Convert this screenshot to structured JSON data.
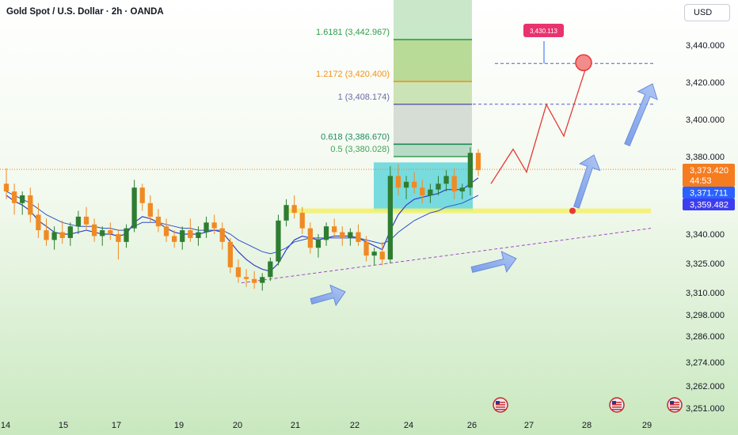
{
  "header": {
    "title": "Gold Spot / U.S. Dollar · 2h · OANDA",
    "currency": "USD"
  },
  "chart_data": {
    "type": "candlestick",
    "title": "Gold Spot / U.S. Dollar · 2h · OANDA",
    "x_ticks": [
      "14",
      "15",
      "17",
      "19",
      "20",
      "21",
      "22",
      "24",
      "26",
      "27",
      "28",
      "29"
    ],
    "y_ticks": [
      3440,
      3420,
      3400,
      3380,
      3340,
      3325,
      3310,
      3298,
      3286,
      3274,
      3262,
      3251
    ],
    "y_tick_labels": [
      "3,440.000",
      "3,420.000",
      "3,400.000",
      "3,380.000",
      "3,340.000",
      "3,325.000",
      "3,310.000",
      "3,298.000",
      "3,286.000",
      "3,274.000",
      "3,262.000",
      "3,251.000"
    ],
    "ylim": [
      3248,
      3462
    ],
    "price_tags": [
      {
        "label": "3,373.420",
        "sub": "44:53",
        "value": 3373.42,
        "color": "#f57c1f"
      },
      {
        "label": "3,371.711",
        "value": 3371.711,
        "color": "#2962ff"
      },
      {
        "label": "3,359.482",
        "value": 3359.482,
        "color": "#3d3df0"
      }
    ],
    "fib_levels": [
      {
        "label": "1.6181 (3,442.967)",
        "value": 3442.967,
        "color": "#2e9e4a"
      },
      {
        "label": "1.2172 (3,420.400)",
        "value": 3420.4,
        "color": "#f29318"
      },
      {
        "label": "1 (3,408.174)",
        "value": 3408.174,
        "color": "#6b6ba8"
      },
      {
        "label": "0.618 (3,386.670)",
        "value": 3386.67,
        "color": "#1f8a5a"
      },
      {
        "label": "0.5 (3,380.028)",
        "value": 3380.028,
        "color": "#41a35c"
      }
    ],
    "target_label": "3,430.113",
    "target_value": 3430.113,
    "support_level": 3352,
    "series": [
      {
        "name": "",
        "type": "candles",
        "values": [
          [
            3366,
            3374,
            3358,
            3362
          ],
          [
            3362,
            3366,
            3350,
            3356
          ],
          [
            3356,
            3362,
            3350,
            3360
          ],
          [
            3360,
            3364,
            3346,
            3350
          ],
          [
            3350,
            3356,
            3338,
            3342
          ],
          [
            3342,
            3348,
            3334,
            3337
          ],
          [
            3337,
            3344,
            3332,
            3341
          ],
          [
            3341,
            3347,
            3335,
            3338
          ],
          [
            3338,
            3346,
            3334,
            3344
          ],
          [
            3344,
            3352,
            3340,
            3349
          ],
          [
            3349,
            3354,
            3342,
            3345
          ],
          [
            3345,
            3348,
            3336,
            3339
          ],
          [
            3339,
            3344,
            3334,
            3342
          ],
          [
            3342,
            3346,
            3337,
            3340
          ],
          [
            3340,
            3342,
            3327,
            3336
          ],
          [
            3336,
            3345,
            3333,
            3343
          ],
          [
            3343,
            3368,
            3341,
            3364
          ],
          [
            3364,
            3366,
            3352,
            3356
          ],
          [
            3356,
            3360,
            3346,
            3349
          ],
          [
            3349,
            3353,
            3341,
            3344
          ],
          [
            3344,
            3348,
            3336,
            3339
          ],
          [
            3339,
            3342,
            3333,
            3336
          ],
          [
            3336,
            3344,
            3332,
            3342
          ],
          [
            3342,
            3348,
            3336,
            3338
          ],
          [
            3338,
            3344,
            3334,
            3341
          ],
          [
            3341,
            3349,
            3338,
            3346
          ],
          [
            3346,
            3350,
            3340,
            3343
          ],
          [
            3343,
            3346,
            3332,
            3336
          ],
          [
            3336,
            3338,
            3320,
            3323
          ],
          [
            3323,
            3327,
            3315,
            3318
          ],
          [
            3318,
            3322,
            3313,
            3317
          ],
          [
            3317,
            3321,
            3312,
            3315
          ],
          [
            3315,
            3320,
            3311,
            3318
          ],
          [
            3318,
            3328,
            3316,
            3326
          ],
          [
            3326,
            3350,
            3324,
            3347
          ],
          [
            3347,
            3358,
            3344,
            3355
          ],
          [
            3355,
            3360,
            3348,
            3351
          ],
          [
            3351,
            3354,
            3340,
            3343
          ],
          [
            3343,
            3346,
            3330,
            3333
          ],
          [
            3333,
            3340,
            3328,
            3337
          ],
          [
            3337,
            3346,
            3334,
            3344
          ],
          [
            3344,
            3348,
            3338,
            3341
          ],
          [
            3341,
            3344,
            3334,
            3338
          ],
          [
            3338,
            3343,
            3334,
            3341
          ],
          [
            3341,
            3345,
            3334,
            3336
          ],
          [
            3336,
            3339,
            3326,
            3329
          ],
          [
            3329,
            3333,
            3324,
            3331
          ],
          [
            3331,
            3336,
            3324,
            3327
          ],
          [
            3327,
            3375,
            3325,
            3370
          ],
          [
            3370,
            3376,
            3360,
            3364
          ],
          [
            3364,
            3370,
            3358,
            3367
          ],
          [
            3367,
            3372,
            3361,
            3364
          ],
          [
            3364,
            3368,
            3356,
            3360
          ],
          [
            3360,
            3366,
            3356,
            3363
          ],
          [
            3363,
            3370,
            3360,
            3366
          ],
          [
            3366,
            3373,
            3362,
            3370
          ],
          [
            3370,
            3374,
            3358,
            3362
          ],
          [
            3362,
            3366,
            3358,
            3364
          ],
          [
            3364,
            3385,
            3360,
            3382
          ],
          [
            3382,
            3384,
            3370,
            3373
          ]
        ]
      },
      {
        "name": "",
        "type": "ma",
        "values": [
          3360,
          3357,
          3355,
          3352,
          3347,
          3344,
          3341,
          3340,
          3340,
          3341,
          3342,
          3341,
          3340,
          3340,
          3339,
          3340,
          3346,
          3349,
          3348,
          3346,
          3343,
          3341,
          3340,
          3340,
          3340,
          3341,
          3342,
          3341,
          3336,
          3331,
          3327,
          3324,
          3322,
          3321,
          3325,
          3332,
          3337,
          3339,
          3338,
          3337,
          3338,
          3339,
          3339,
          3339,
          3338,
          3336,
          3334,
          3332,
          3342,
          3350,
          3355,
          3358,
          3359,
          3360,
          3361,
          3363,
          3363,
          3363,
          3366,
          3369
        ]
      },
      {
        "name": "",
        "type": "ma",
        "values": [
          3362,
          3360,
          3358,
          3356,
          3353,
          3350,
          3348,
          3346,
          3345,
          3344,
          3344,
          3344,
          3343,
          3343,
          3342,
          3342,
          3344,
          3346,
          3346,
          3346,
          3345,
          3344,
          3343,
          3343,
          3342,
          3342,
          3342,
          3342,
          3340,
          3337,
          3335,
          3333,
          3331,
          3330,
          3331,
          3333,
          3336,
          3337,
          3338,
          3338,
          3338,
          3338,
          3338,
          3338,
          3338,
          3337,
          3336,
          3335,
          3337,
          3341,
          3344,
          3347,
          3349,
          3351,
          3352,
          3354,
          3355,
          3356,
          3358,
          3360
        ]
      }
    ]
  }
}
